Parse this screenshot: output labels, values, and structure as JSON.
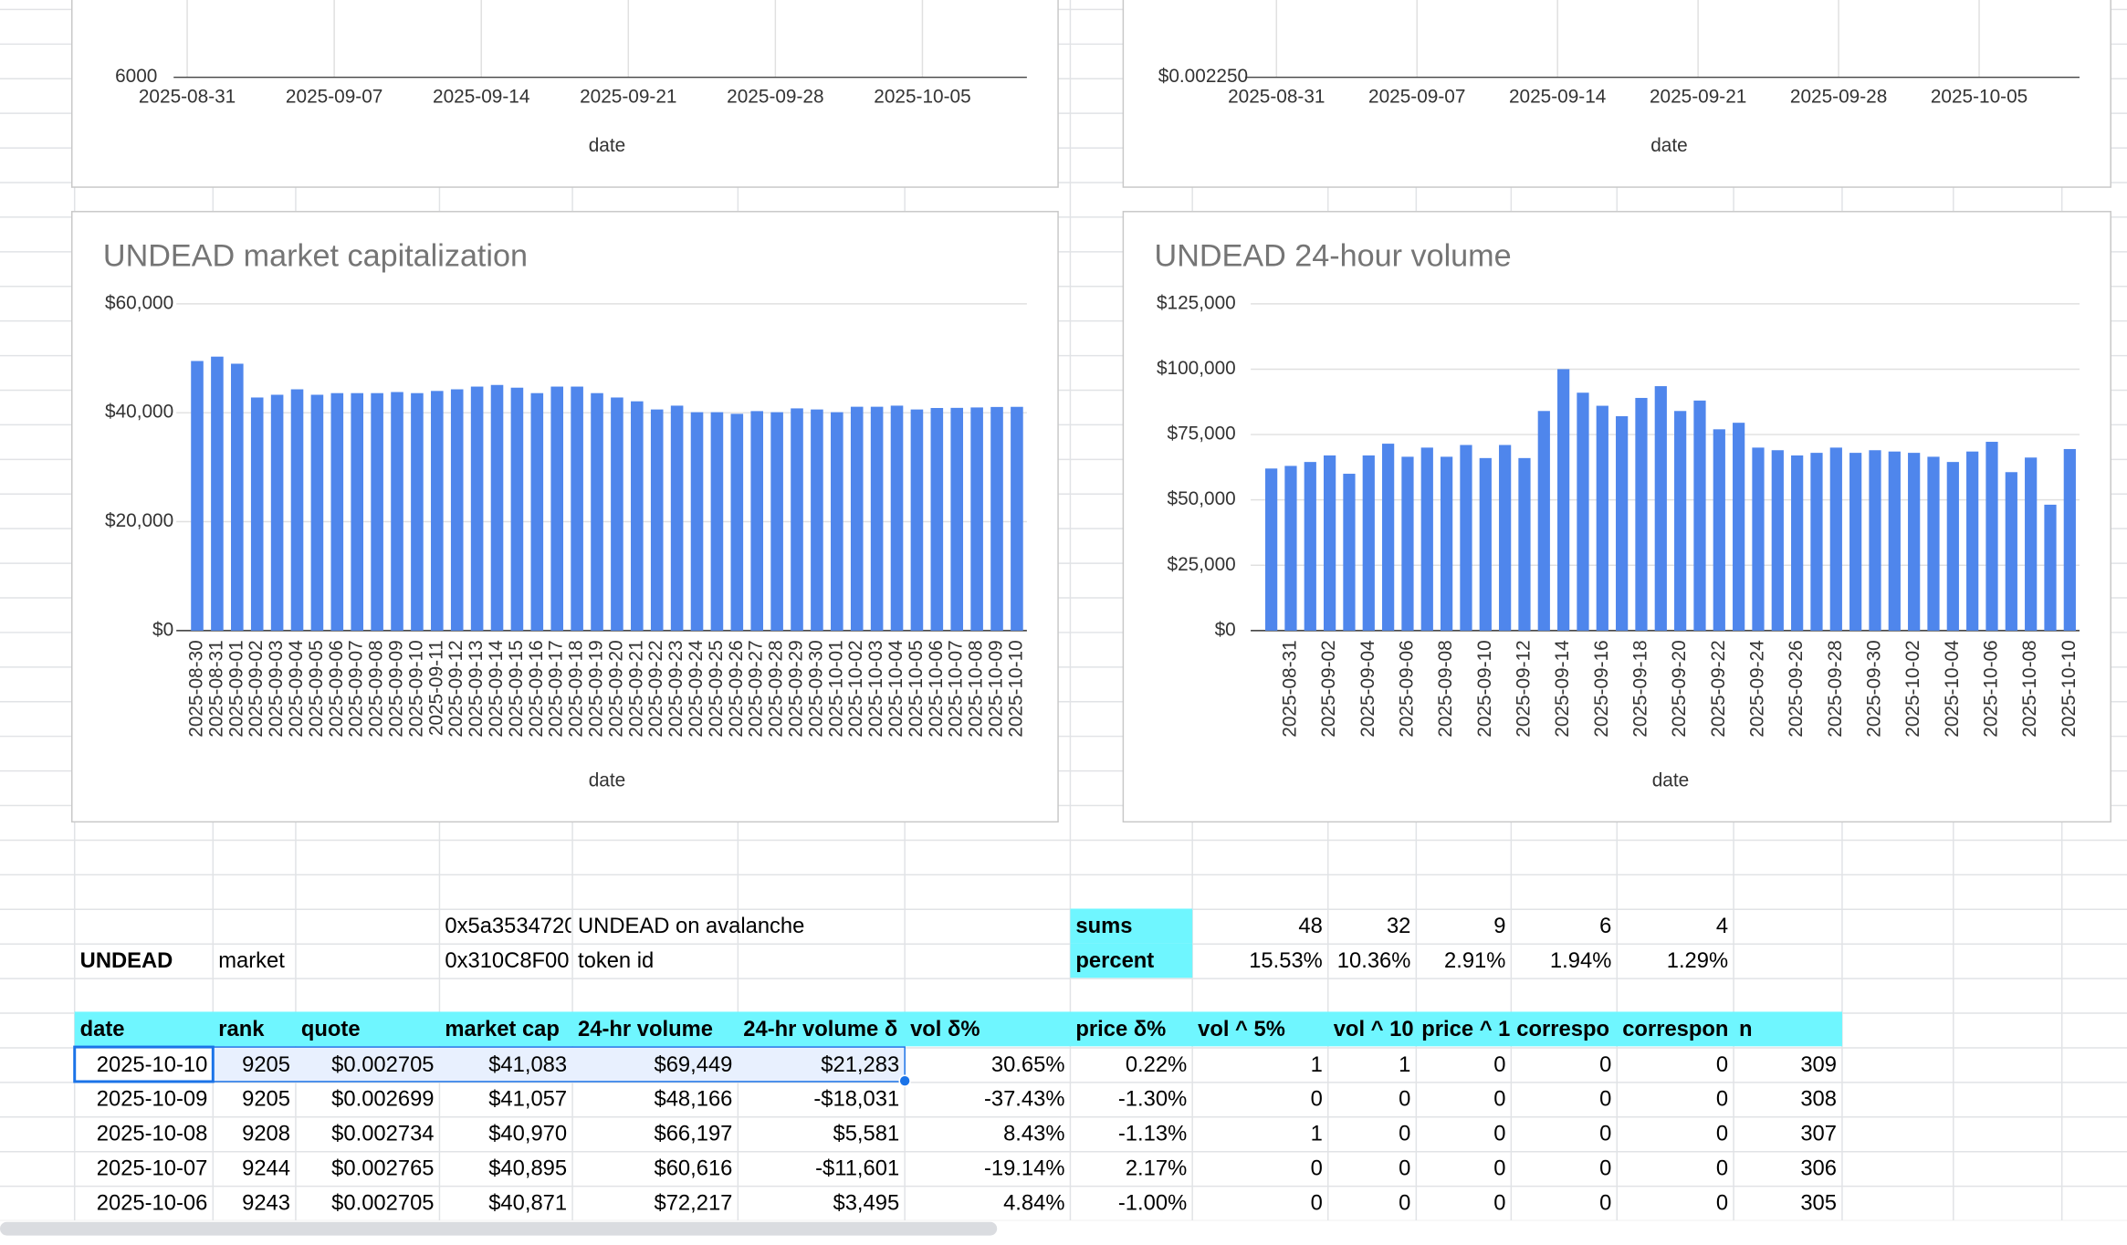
{
  "chart_data": [
    {
      "type": "line",
      "x_label": "date",
      "xticks": [
        "2025-08-31",
        "2025-09-07",
        "2025-09-14",
        "2025-09-21",
        "2025-09-28",
        "2025-10-05"
      ],
      "yticks": [
        6000
      ],
      "grid": true
    },
    {
      "type": "line",
      "x_label": "date",
      "xticks": [
        "2025-08-31",
        "2025-09-07",
        "2025-09-14",
        "2025-09-21",
        "2025-09-28",
        "2025-10-05"
      ],
      "yticks": [
        {
          "value": 0.00225,
          "label": "$0.002250"
        }
      ],
      "grid": true
    },
    {
      "type": "bar",
      "title": "UNDEAD market capitalization",
      "x_label": "date",
      "color": "#4f86ec",
      "grid": true,
      "categories": [
        "2025-08-30",
        "2025-08-31",
        "2025-09-01",
        "2025-09-02",
        "2025-09-03",
        "2025-09-04",
        "2025-09-05",
        "2025-09-06",
        "2025-09-07",
        "2025-09-08",
        "2025-09-09",
        "2025-09-10",
        "2025-09-11",
        "2025-09-12",
        "2025-09-13",
        "2025-09-14",
        "2025-09-15",
        "2025-09-16",
        "2025-09-17",
        "2025-09-18",
        "2025-09-19",
        "2025-09-20",
        "2025-09-21",
        "2025-09-22",
        "2025-09-23",
        "2025-09-24",
        "2025-09-25",
        "2025-09-26",
        "2025-09-27",
        "2025-09-28",
        "2025-09-29",
        "2025-09-30",
        "2025-10-01",
        "2025-10-02",
        "2025-10-03",
        "2025-10-04",
        "2025-10-05",
        "2025-10-06",
        "2025-10-07",
        "2025-10-08",
        "2025-10-09",
        "2025-10-10"
      ],
      "values": [
        49500,
        50300,
        49000,
        42800,
        43300,
        44300,
        43300,
        43600,
        43600,
        43600,
        43800,
        43600,
        44000,
        44300,
        44800,
        45100,
        44600,
        43600,
        44800,
        44800,
        43600,
        42800,
        42100,
        40600,
        41300,
        40100,
        40100,
        39800,
        40300,
        40100,
        40800,
        40600,
        40100,
        41100,
        41100,
        41300,
        40600,
        40871,
        40895,
        40970,
        41057,
        41083
      ],
      "ylim": [
        0,
        60000
      ],
      "yticks": [
        {
          "value": 0,
          "label": "$0"
        },
        {
          "value": 20000,
          "label": "$20,000"
        },
        {
          "value": 40000,
          "label": "$40,000"
        },
        {
          "value": 60000,
          "label": "$60,000"
        }
      ]
    },
    {
      "type": "bar",
      "title": "UNDEAD 24-hour volume",
      "x_label": "date",
      "color": "#4f86ec",
      "grid": true,
      "categories": [
        null,
        "2025-08-31",
        null,
        "2025-09-02",
        null,
        "2025-09-04",
        null,
        "2025-09-06",
        null,
        "2025-09-08",
        null,
        "2025-09-10",
        null,
        "2025-09-12",
        null,
        "2025-09-14",
        null,
        "2025-09-16",
        null,
        "2025-09-18",
        null,
        "2025-09-20",
        null,
        "2025-09-22",
        null,
        "2025-09-24",
        null,
        "2025-09-26",
        null,
        "2025-09-28",
        null,
        "2025-09-30",
        null,
        "2025-10-02",
        null,
        "2025-10-04",
        null,
        "2025-10-06",
        null,
        "2025-10-08",
        null,
        "2025-10-10"
      ],
      "values": [
        62000,
        63000,
        64500,
        67000,
        60000,
        67000,
        71500,
        66500,
        70000,
        66500,
        71000,
        66000,
        71000,
        66000,
        84000,
        100000,
        91000,
        86000,
        82000,
        89000,
        93500,
        84000,
        88000,
        77000,
        79500,
        70000,
        69000,
        67000,
        68000,
        70000,
        68000,
        69000,
        68500,
        68000,
        66500,
        64500,
        68500,
        72217,
        60616,
        66197,
        48166,
        69449
      ],
      "ylim": [
        0,
        125000
      ],
      "yticks": [
        {
          "value": 0,
          "label": "$0"
        },
        {
          "value": 25000,
          "label": "$25,000"
        },
        {
          "value": 50000,
          "label": "$50,000"
        },
        {
          "value": 75000,
          "label": "$75,000"
        },
        {
          "value": 100000,
          "label": "$100,000"
        },
        {
          "value": 125000,
          "label": "$125,000"
        }
      ]
    }
  ],
  "sheet": {
    "info_rows": [
      [
        null,
        null,
        null,
        "0x5a3534720",
        "UNDEAD on avalanche",
        null,
        null,
        "sums",
        48,
        32,
        9,
        6,
        4,
        null
      ],
      [
        "UNDEAD",
        "market",
        null,
        "0x310C8F00",
        "token id",
        null,
        null,
        "percent",
        "15.53%",
        "10.36%",
        "2.91%",
        "1.94%",
        "1.29%",
        null
      ]
    ],
    "header": [
      "date",
      "rank",
      "quote",
      "market cap",
      "24-hr volume",
      "24-hr volume δ",
      "vol δ%",
      "price δ%",
      "vol ^ 5%",
      "vol ^ 10",
      "price ^ 1",
      "correspo",
      "correspon",
      "n"
    ],
    "rows": [
      [
        "2025-10-10",
        9205,
        "$0.002705",
        "$41,083",
        "$69,449",
        "$21,283",
        "30.65%",
        "0.22%",
        1,
        1,
        0,
        0,
        0,
        309
      ],
      [
        "2025-10-09",
        9205,
        "$0.002699",
        "$41,057",
        "$48,166",
        "-$18,031",
        "-37.43%",
        "-1.30%",
        0,
        0,
        0,
        0,
        0,
        308
      ],
      [
        "2025-10-08",
        9208,
        "$0.002734",
        "$40,970",
        "$66,197",
        "$5,581",
        "8.43%",
        "-1.13%",
        1,
        0,
        0,
        0,
        0,
        307
      ],
      [
        "2025-10-07",
        9244,
        "$0.002765",
        "$40,895",
        "$60,616",
        "-$11,601",
        "-19.14%",
        "2.17%",
        0,
        0,
        0,
        0,
        0,
        306
      ],
      [
        "2025-10-06",
        9243,
        "$0.002705",
        "$40,871",
        "$72,217",
        "$3,495",
        "4.84%",
        "-1.00%",
        0,
        0,
        0,
        0,
        0,
        305
      ]
    ]
  }
}
